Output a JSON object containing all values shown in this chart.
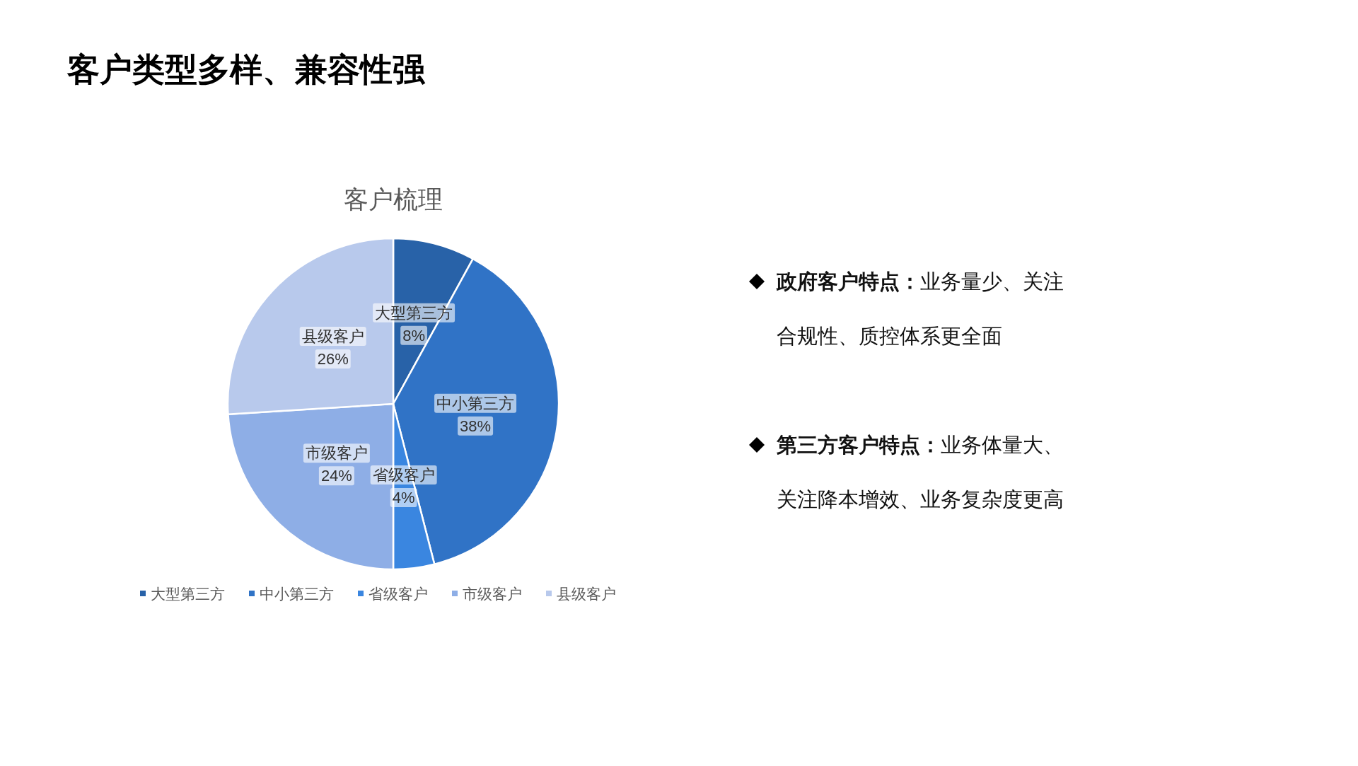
{
  "chart_data": [
    {
      "type": "pie",
      "title": "客户梳理",
      "categories": [
        "大型第三方",
        "中小第三方",
        "省级客户",
        "市级客户",
        "县级客户"
      ],
      "values": [
        8,
        38,
        4,
        24,
        26
      ],
      "value_labels": [
        "8%",
        "38%",
        "4%",
        "24%",
        "26%"
      ],
      "colors": [
        "#2862a8",
        "#3073c6",
        "#3a86e0",
        "#8eaee6",
        "#b8c9ec"
      ],
      "legend": "bottom"
    },
    {
      "type": "other",
      "title": "客户类型多样、兼容性强",
      "annotations": [
        "政府客户特点：",
        "业务量少、关注合规性、质控体系更全面",
        "第三方客户特点：",
        "业务体量大、关注降本增效、业务复杂度更高"
      ]
    }
  ]
}
